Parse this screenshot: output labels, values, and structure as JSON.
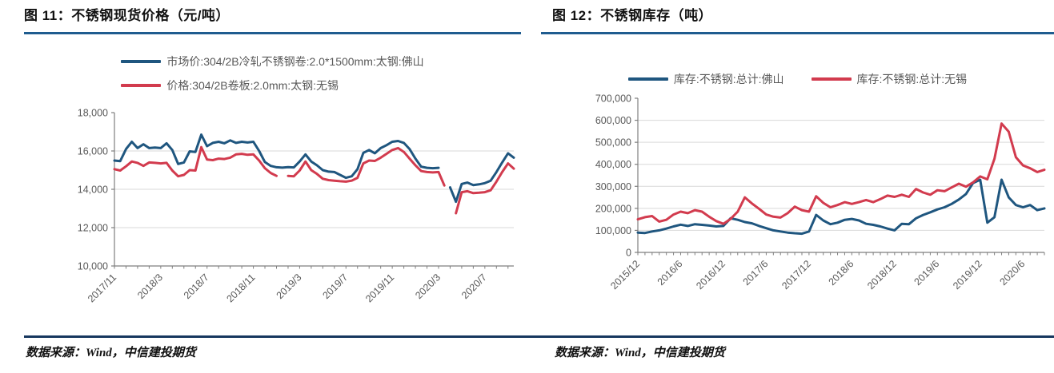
{
  "colors": {
    "series_blue": "#1F567F",
    "series_red": "#D23B4E",
    "title_rule": "#1F5C8F",
    "source_rule": "#17375E",
    "grid": "#D9D9D9",
    "axis": "#7F7F7F",
    "tick_label": "#595959",
    "title_text": "#111111"
  },
  "panels": [
    {
      "title": "图 11：不锈钢现货价格（元/吨）",
      "source": "数据来源：Wind，中信建投期货"
    },
    {
      "title": "图 12：不锈钢库存（吨）",
      "source": "数据来源：Wind，中信建投期货"
    }
  ],
  "chart_data": [
    {
      "type": "line",
      "title": "图 11：不锈钢现货价格（元/吨）",
      "xlabel": "",
      "ylabel": "元/吨",
      "legend_position": "top",
      "grid": "horizontal",
      "ylim": [
        10000,
        18000
      ],
      "y_ticks": [
        10000,
        12000,
        14000,
        16000,
        18000
      ],
      "x_range": [
        0,
        34.5
      ],
      "x_unit": "months since 2017/11",
      "x_tick_positions": [
        0,
        4,
        8,
        12,
        16,
        20,
        24,
        28,
        32
      ],
      "x_tick_labels": [
        "2017/11",
        "2018/3",
        "2018/7",
        "2018/11",
        "2019/3",
        "2019/7",
        "2019/11",
        "2020/3",
        "2020/7"
      ],
      "x_label_rotation": -45,
      "series": [
        {
          "name": "市场价:304/2B冷轧不锈钢卷:2.0*1500mm:太钢:佛山",
          "color": "#1F567F",
          "step": 0.5,
          "values": [
            15500,
            15470,
            16100,
            16480,
            16150,
            16350,
            16150,
            16180,
            16150,
            16400,
            16050,
            15320,
            15400,
            15980,
            15950,
            16850,
            16250,
            16420,
            16480,
            16400,
            16550,
            16420,
            16480,
            16440,
            16480,
            16000,
            15420,
            15220,
            15150,
            15130,
            15160,
            15140,
            15450,
            15820,
            15450,
            15250,
            15000,
            14920,
            14900,
            14750,
            14600,
            14680,
            15050,
            15900,
            16050,
            15880,
            16150,
            16300,
            16480,
            16520,
            16420,
            16100,
            15600,
            15180,
            15120,
            15100,
            15120,
            null,
            14100,
            13350,
            14280,
            14350,
            14220,
            14260,
            14320,
            14450,
            14900,
            15400,
            15880,
            15650
          ]
        },
        {
          "name": "价格:304/2B卷板:2.0mm:太钢:无锡",
          "color": "#D23B4E",
          "step": 0.5,
          "values": [
            15050,
            14980,
            15200,
            15450,
            15380,
            15220,
            15400,
            15380,
            15350,
            15380,
            14980,
            14680,
            14750,
            15000,
            14980,
            16200,
            15550,
            15520,
            15600,
            15580,
            15650,
            15820,
            15850,
            15800,
            15820,
            15500,
            15100,
            14850,
            14700,
            null,
            14700,
            14680,
            14980,
            15450,
            15000,
            14800,
            14550,
            14480,
            14450,
            14420,
            14400,
            14450,
            14600,
            15350,
            15500,
            15480,
            15650,
            15850,
            16050,
            16150,
            15950,
            15600,
            15250,
            14950,
            14900,
            14880,
            14900,
            14200,
            null,
            12750,
            13850,
            13900,
            13800,
            13820,
            13850,
            13950,
            14400,
            14900,
            15350,
            15080
          ]
        }
      ]
    },
    {
      "type": "line",
      "title": "图 12：不锈钢库存（吨）",
      "xlabel": "",
      "ylabel": "吨",
      "legend_position": "top",
      "grid": "horizontal",
      "ylim": [
        0,
        700000
      ],
      "y_ticks": [
        0,
        100000,
        200000,
        300000,
        400000,
        500000,
        600000,
        700000
      ],
      "x_range": [
        0,
        57
      ],
      "x_unit": "months since 2015/12",
      "x_tick_positions": [
        0,
        6,
        12,
        18,
        24,
        30,
        36,
        42,
        48,
        54
      ],
      "x_tick_labels": [
        "2015/12",
        "2016/6",
        "2016/12",
        "2017/6",
        "2017/12",
        "2018/6",
        "2018/12",
        "2019/6",
        "2019/12",
        "2020/6"
      ],
      "x_label_rotation": -45,
      "series": [
        {
          "name": "库存:不锈钢:总计:佛山",
          "color": "#1F567F",
          "step": 1,
          "values": [
            90000,
            88000,
            95000,
            100000,
            108000,
            118000,
            126000,
            120000,
            128000,
            125000,
            122000,
            118000,
            120000,
            155000,
            148000,
            138000,
            132000,
            120000,
            110000,
            100000,
            95000,
            90000,
            87000,
            85000,
            95000,
            170000,
            145000,
            128000,
            135000,
            148000,
            152000,
            145000,
            130000,
            125000,
            118000,
            108000,
            100000,
            130000,
            128000,
            155000,
            170000,
            182000,
            195000,
            205000,
            220000,
            240000,
            265000,
            315000,
            330000,
            135000,
            160000,
            330000,
            250000,
            215000,
            205000,
            215000,
            192000,
            200000
          ]
        },
        {
          "name": "库存:不锈钢:总计:无锡",
          "color": "#D23B4E",
          "step": 1,
          "values": [
            150000,
            160000,
            165000,
            140000,
            148000,
            172000,
            185000,
            178000,
            192000,
            185000,
            162000,
            142000,
            130000,
            152000,
            185000,
            250000,
            222000,
            198000,
            172000,
            162000,
            158000,
            178000,
            208000,
            192000,
            185000,
            255000,
            225000,
            205000,
            215000,
            228000,
            220000,
            228000,
            238000,
            228000,
            242000,
            258000,
            252000,
            262000,
            252000,
            288000,
            272000,
            262000,
            282000,
            278000,
            295000,
            312000,
            298000,
            318000,
            345000,
            332000,
            425000,
            585000,
            548000,
            432000,
            395000,
            382000,
            365000,
            375000
          ]
        }
      ]
    }
  ]
}
